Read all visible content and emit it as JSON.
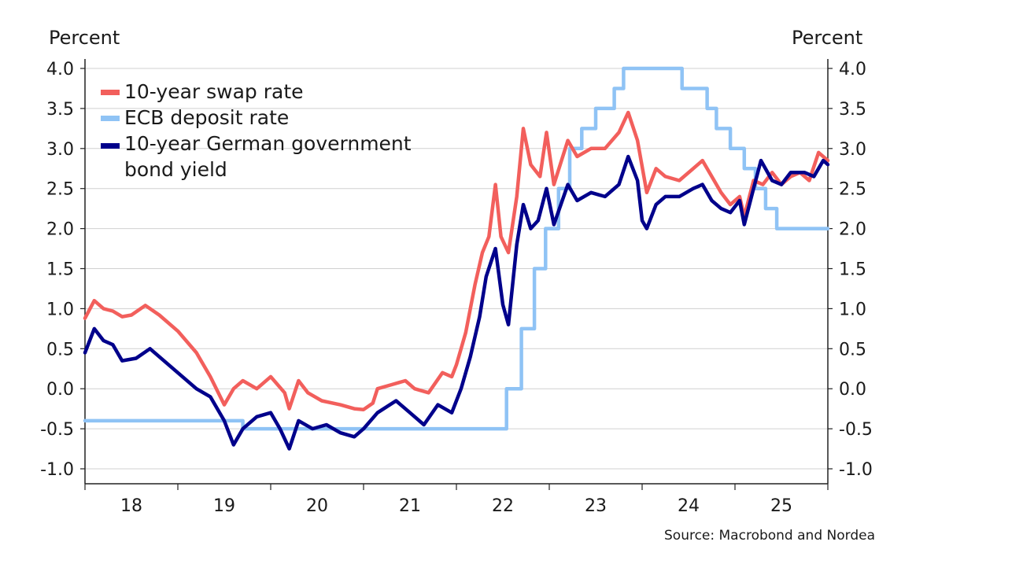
{
  "chart_data": {
    "type": "line",
    "unit_left": "Percent",
    "unit_right": "Percent",
    "source": "Source: Macrobond and Nordea",
    "ylim": [
      -1.0,
      4.0
    ],
    "yticks": [
      "4.0",
      "3.5",
      "3.0",
      "2.5",
      "2.0",
      "1.5",
      "1.0",
      "0.5",
      "0.0",
      "-0.5",
      "-1.0"
    ],
    "ytick_values": [
      4.0,
      3.5,
      3.0,
      2.5,
      2.0,
      1.5,
      1.0,
      0.5,
      0.0,
      -0.5,
      -1.0
    ],
    "xlim": [
      2018.0,
      2026.0
    ],
    "xticks": [
      "18",
      "19",
      "20",
      "21",
      "22",
      "23",
      "24",
      "25"
    ],
    "xtick_values": [
      2018.5,
      2019.5,
      2020.5,
      2021.5,
      2022.5,
      2023.5,
      2024.5,
      2025.5
    ],
    "grid": "horizontal",
    "legend": "top-left",
    "series": [
      {
        "name": "10-year swap rate",
        "color": "#f25f5c",
        "points": [
          [
            2018.0,
            0.88
          ],
          [
            2018.1,
            1.1
          ],
          [
            2018.2,
            1.0
          ],
          [
            2018.3,
            0.97
          ],
          [
            2018.4,
            0.9
          ],
          [
            2018.5,
            0.92
          ],
          [
            2018.65,
            1.04
          ],
          [
            2018.8,
            0.92
          ],
          [
            2019.0,
            0.72
          ],
          [
            2019.2,
            0.45
          ],
          [
            2019.35,
            0.15
          ],
          [
            2019.5,
            -0.2
          ],
          [
            2019.6,
            0.0
          ],
          [
            2019.7,
            0.1
          ],
          [
            2019.85,
            0.0
          ],
          [
            2020.0,
            0.15
          ],
          [
            2020.15,
            -0.05
          ],
          [
            2020.2,
            -0.25
          ],
          [
            2020.3,
            0.1
          ],
          [
            2020.4,
            -0.05
          ],
          [
            2020.55,
            -0.15
          ],
          [
            2020.75,
            -0.2
          ],
          [
            2020.9,
            -0.25
          ],
          [
            2021.0,
            -0.26
          ],
          [
            2021.1,
            -0.18
          ],
          [
            2021.15,
            0.0
          ],
          [
            2021.3,
            0.05
          ],
          [
            2021.45,
            0.1
          ],
          [
            2021.55,
            0.0
          ],
          [
            2021.7,
            -0.05
          ],
          [
            2021.85,
            0.2
          ],
          [
            2021.95,
            0.15
          ],
          [
            2022.0,
            0.3
          ],
          [
            2022.1,
            0.7
          ],
          [
            2022.2,
            1.3
          ],
          [
            2022.28,
            1.7
          ],
          [
            2022.35,
            1.9
          ],
          [
            2022.42,
            2.55
          ],
          [
            2022.48,
            1.9
          ],
          [
            2022.56,
            1.7
          ],
          [
            2022.65,
            2.4
          ],
          [
            2022.72,
            3.25
          ],
          [
            2022.8,
            2.8
          ],
          [
            2022.9,
            2.65
          ],
          [
            2022.97,
            3.2
          ],
          [
            2023.05,
            2.55
          ],
          [
            2023.2,
            3.1
          ],
          [
            2023.3,
            2.9
          ],
          [
            2023.45,
            3.0
          ],
          [
            2023.6,
            3.0
          ],
          [
            2023.75,
            3.2
          ],
          [
            2023.85,
            3.45
          ],
          [
            2023.95,
            3.1
          ],
          [
            2024.05,
            2.45
          ],
          [
            2024.15,
            2.75
          ],
          [
            2024.25,
            2.65
          ],
          [
            2024.4,
            2.6
          ],
          [
            2024.55,
            2.75
          ],
          [
            2024.65,
            2.85
          ],
          [
            2024.75,
            2.65
          ],
          [
            2024.85,
            2.45
          ],
          [
            2024.95,
            2.3
          ],
          [
            2025.05,
            2.4
          ],
          [
            2025.1,
            2.15
          ],
          [
            2025.2,
            2.6
          ],
          [
            2025.3,
            2.55
          ],
          [
            2025.4,
            2.7
          ],
          [
            2025.5,
            2.55
          ],
          [
            2025.6,
            2.65
          ],
          [
            2025.7,
            2.7
          ],
          [
            2025.8,
            2.6
          ],
          [
            2025.9,
            2.95
          ],
          [
            2026.0,
            2.85
          ]
        ]
      },
      {
        "name": "ECB deposit rate",
        "color": "#8fc3f5",
        "points": [
          [
            2018.0,
            -0.4
          ],
          [
            2019.7,
            -0.4
          ],
          [
            2019.7,
            -0.5
          ],
          [
            2022.54,
            -0.5
          ],
          [
            2022.54,
            0.0
          ],
          [
            2022.7,
            0.0
          ],
          [
            2022.7,
            0.75
          ],
          [
            2022.84,
            0.75
          ],
          [
            2022.84,
            1.5
          ],
          [
            2022.96,
            1.5
          ],
          [
            2022.96,
            2.0
          ],
          [
            2023.1,
            2.0
          ],
          [
            2023.1,
            2.5
          ],
          [
            2023.22,
            2.5
          ],
          [
            2023.22,
            3.0
          ],
          [
            2023.35,
            3.0
          ],
          [
            2023.35,
            3.25
          ],
          [
            2023.5,
            3.25
          ],
          [
            2023.5,
            3.5
          ],
          [
            2023.7,
            3.5
          ],
          [
            2023.7,
            3.75
          ],
          [
            2023.8,
            3.75
          ],
          [
            2023.8,
            4.0
          ],
          [
            2024.43,
            4.0
          ],
          [
            2024.43,
            3.75
          ],
          [
            2024.7,
            3.75
          ],
          [
            2024.7,
            3.5
          ],
          [
            2024.8,
            3.5
          ],
          [
            2024.8,
            3.25
          ],
          [
            2024.95,
            3.25
          ],
          [
            2024.95,
            3.0
          ],
          [
            2025.1,
            3.0
          ],
          [
            2025.1,
            2.75
          ],
          [
            2025.22,
            2.75
          ],
          [
            2025.22,
            2.5
          ],
          [
            2025.33,
            2.5
          ],
          [
            2025.33,
            2.25
          ],
          [
            2025.45,
            2.25
          ],
          [
            2025.45,
            2.0
          ],
          [
            2026.0,
            2.0
          ]
        ]
      },
      {
        "name": "10-year German government bond yield",
        "color": "#00008b",
        "points": [
          [
            2018.0,
            0.45
          ],
          [
            2018.1,
            0.75
          ],
          [
            2018.2,
            0.6
          ],
          [
            2018.3,
            0.55
          ],
          [
            2018.4,
            0.35
          ],
          [
            2018.55,
            0.38
          ],
          [
            2018.7,
            0.5
          ],
          [
            2018.9,
            0.3
          ],
          [
            2019.05,
            0.15
          ],
          [
            2019.2,
            0.0
          ],
          [
            2019.35,
            -0.1
          ],
          [
            2019.5,
            -0.4
          ],
          [
            2019.6,
            -0.7
          ],
          [
            2019.7,
            -0.5
          ],
          [
            2019.85,
            -0.35
          ],
          [
            2020.0,
            -0.3
          ],
          [
            2020.1,
            -0.5
          ],
          [
            2020.2,
            -0.75
          ],
          [
            2020.3,
            -0.4
          ],
          [
            2020.45,
            -0.5
          ],
          [
            2020.6,
            -0.45
          ],
          [
            2020.75,
            -0.55
          ],
          [
            2020.9,
            -0.6
          ],
          [
            2021.0,
            -0.5
          ],
          [
            2021.15,
            -0.3
          ],
          [
            2021.35,
            -0.15
          ],
          [
            2021.5,
            -0.3
          ],
          [
            2021.65,
            -0.45
          ],
          [
            2021.8,
            -0.2
          ],
          [
            2021.95,
            -0.3
          ],
          [
            2022.05,
            0.0
          ],
          [
            2022.15,
            0.4
          ],
          [
            2022.25,
            0.9
          ],
          [
            2022.32,
            1.4
          ],
          [
            2022.42,
            1.75
          ],
          [
            2022.5,
            1.05
          ],
          [
            2022.56,
            0.8
          ],
          [
            2022.65,
            1.8
          ],
          [
            2022.72,
            2.3
          ],
          [
            2022.8,
            2.0
          ],
          [
            2022.88,
            2.1
          ],
          [
            2022.97,
            2.5
          ],
          [
            2023.05,
            2.05
          ],
          [
            2023.2,
            2.55
          ],
          [
            2023.3,
            2.35
          ],
          [
            2023.45,
            2.45
          ],
          [
            2023.6,
            2.4
          ],
          [
            2023.75,
            2.55
          ],
          [
            2023.85,
            2.9
          ],
          [
            2023.95,
            2.6
          ],
          [
            2024.0,
            2.1
          ],
          [
            2024.05,
            2.0
          ],
          [
            2024.15,
            2.3
          ],
          [
            2024.25,
            2.4
          ],
          [
            2024.4,
            2.4
          ],
          [
            2024.55,
            2.5
          ],
          [
            2024.65,
            2.55
          ],
          [
            2024.75,
            2.35
          ],
          [
            2024.85,
            2.25
          ],
          [
            2024.95,
            2.2
          ],
          [
            2025.05,
            2.35
          ],
          [
            2025.1,
            2.05
          ],
          [
            2025.2,
            2.5
          ],
          [
            2025.28,
            2.85
          ],
          [
            2025.4,
            2.6
          ],
          [
            2025.5,
            2.55
          ],
          [
            2025.6,
            2.7
          ],
          [
            2025.75,
            2.7
          ],
          [
            2025.85,
            2.65
          ],
          [
            2025.95,
            2.85
          ],
          [
            2026.0,
            2.8
          ]
        ]
      }
    ]
  }
}
